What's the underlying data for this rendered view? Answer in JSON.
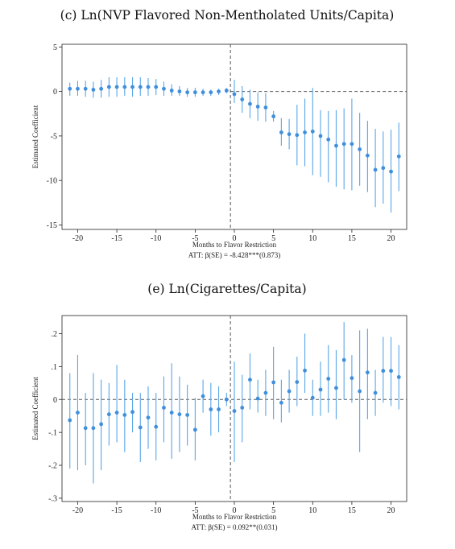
{
  "chart_data": [
    {
      "type": "scatter",
      "title": "(c) Ln(NVP Flavored Non-Mentholated Units/Capita)",
      "xlabel": "Months to Flavor Restriction",
      "ylabel": "Estimated Coefficient",
      "note": "ATT: β(SE) = -8.428***(0.873)",
      "xlim": [
        -22,
        22
      ],
      "ylim": [
        -15.5,
        5.3
      ],
      "xticks": [
        -20,
        -15,
        -10,
        -5,
        0,
        5,
        10,
        15,
        20
      ],
      "xtick_labels": [
        "-20",
        "-15",
        "-10",
        "-5",
        "0",
        "5",
        "10",
        "15",
        "20"
      ],
      "yticks": [
        5,
        0,
        -5,
        -10,
        -15
      ],
      "ytick_labels": [
        "5",
        "0",
        "-5",
        "-10",
        "-15"
      ],
      "reference_lines": {
        "vertical_x": -0.5,
        "horizontal_dashed_from_x": -0.5,
        "horizontal_y": 0
      },
      "series": [
        {
          "x": [
            -21,
            -20,
            -19,
            -18,
            -17,
            -16,
            -15,
            -14,
            -13,
            -12,
            -11,
            -10,
            -9,
            -8,
            -7,
            -6,
            -5,
            -4,
            -3,
            -2,
            -1,
            0,
            1,
            2,
            3,
            4,
            5,
            6,
            7,
            8,
            9,
            10,
            11,
            12,
            13,
            14,
            15,
            16,
            17,
            18,
            19,
            20,
            21
          ],
          "y": [
            0.3,
            0.3,
            0.3,
            0.2,
            0.3,
            0.5,
            0.5,
            0.5,
            0.5,
            0.5,
            0.5,
            0.5,
            0.3,
            0.1,
            0.0,
            -0.1,
            -0.1,
            -0.1,
            -0.1,
            0.0,
            0.1,
            -0.3,
            -0.9,
            -1.4,
            -1.7,
            -1.8,
            -2.8,
            -4.6,
            -4.8,
            -4.9,
            -4.6,
            -4.5,
            -5.0,
            -5.4,
            -6.1,
            -5.9,
            -5.9,
            -6.5,
            -7.2,
            -8.8,
            -8.6,
            -9.0,
            -7.3
          ],
          "ci_low": [
            -0.5,
            -0.5,
            -0.6,
            -0.7,
            -0.7,
            -0.6,
            -0.6,
            -0.5,
            -0.6,
            -0.5,
            -0.5,
            -0.4,
            -0.5,
            -0.5,
            -0.5,
            -0.6,
            -0.6,
            -0.5,
            -0.5,
            -0.4,
            -0.2,
            -1.3,
            -2.4,
            -3.0,
            -3.3,
            -3.4,
            -3.4,
            -6.1,
            -6.5,
            -8.3,
            -8.4,
            -9.4,
            -9.6,
            -10.2,
            -10.7,
            -11.0,
            -11.1,
            -10.6,
            -11.3,
            -13.0,
            -12.6,
            -13.6,
            -11.2
          ],
          "ci_high": [
            1.0,
            1.2,
            1.2,
            1.1,
            1.3,
            1.6,
            1.6,
            1.6,
            1.6,
            1.6,
            1.5,
            1.4,
            1.1,
            0.8,
            0.6,
            0.4,
            0.4,
            0.3,
            0.2,
            0.3,
            0.4,
            1.3,
            0.6,
            0.2,
            -0.1,
            -0.2,
            -2.2,
            -3.0,
            -3.1,
            -1.5,
            -0.8,
            0.4,
            -2.1,
            -2.2,
            -2.1,
            -1.9,
            -0.8,
            -2.4,
            -3.3,
            -4.2,
            -4.5,
            -4.3,
            -3.5
          ]
        }
      ]
    },
    {
      "type": "scatter",
      "title": "(e) Ln(Cigarettes/Capita)",
      "xlabel": "Months to Flavor Restriction",
      "ylabel": "Estimated Coefficient",
      "note": "ATT: β(SE) = 0.092**(0.031)",
      "xlim": [
        -22,
        22
      ],
      "ylim": [
        -0.31,
        0.255
      ],
      "xticks": [
        -20,
        -15,
        -10,
        -5,
        0,
        5,
        10,
        15,
        20
      ],
      "xtick_labels": [
        "-20",
        "-15",
        "-10",
        "-5",
        "0",
        "5",
        "10",
        "15",
        "20"
      ],
      "yticks": [
        0.2,
        0.1,
        0,
        -0.1,
        -0.2,
        -0.3
      ],
      "ytick_labels": [
        ".2",
        ".1",
        "0",
        "-.1",
        "-.2",
        "-.3"
      ],
      "reference_lines": {
        "vertical_x": -0.5,
        "horizontal_dashed_from_x": -22,
        "horizontal_y": 0
      },
      "series": [
        {
          "x": [
            -21,
            -20,
            -19,
            -18,
            -17,
            -16,
            -15,
            -14,
            -13,
            -12,
            -11,
            -10,
            -9,
            -8,
            -7,
            -6,
            -5,
            -4,
            -3,
            -2,
            -1,
            0,
            1,
            2,
            3,
            4,
            5,
            6,
            7,
            8,
            9,
            10,
            11,
            12,
            13,
            14,
            15,
            16,
            17,
            18,
            19,
            20,
            21
          ],
          "y": [
            -0.063,
            -0.04,
            -0.087,
            -0.087,
            -0.075,
            -0.045,
            -0.04,
            -0.047,
            -0.038,
            -0.085,
            -0.055,
            -0.083,
            -0.025,
            -0.04,
            -0.045,
            -0.047,
            -0.092,
            0.01,
            -0.03,
            -0.03,
            0.0,
            -0.035,
            -0.025,
            0.06,
            0.003,
            0.02,
            0.052,
            -0.01,
            0.025,
            0.053,
            0.088,
            0.005,
            0.03,
            0.063,
            0.035,
            0.12,
            0.065,
            0.025,
            0.082,
            0.02,
            0.087,
            0.087,
            0.068
          ],
          "ci_low": [
            -0.21,
            -0.215,
            -0.2,
            -0.255,
            -0.215,
            -0.14,
            -0.13,
            -0.16,
            -0.1,
            -0.19,
            -0.15,
            -0.185,
            -0.13,
            -0.18,
            -0.16,
            -0.14,
            -0.185,
            -0.04,
            -0.11,
            -0.1,
            -0.02,
            -0.19,
            -0.13,
            -0.03,
            -0.04,
            -0.05,
            -0.06,
            -0.07,
            -0.04,
            -0.02,
            0.02,
            -0.05,
            -0.05,
            -0.04,
            -0.06,
            0.0,
            -0.01,
            -0.16,
            -0.06,
            -0.05,
            -0.01,
            -0.02,
            -0.03
          ],
          "ci_high": [
            0.08,
            0.135,
            0.02,
            0.08,
            0.06,
            0.05,
            0.105,
            0.06,
            0.02,
            0.02,
            0.04,
            0.02,
            0.07,
            0.11,
            0.07,
            0.045,
            0.005,
            0.06,
            0.05,
            0.04,
            0.02,
            0.115,
            0.075,
            0.14,
            0.06,
            0.09,
            0.16,
            0.06,
            0.09,
            0.13,
            0.2,
            0.06,
            0.115,
            0.165,
            0.15,
            0.235,
            0.135,
            0.21,
            0.215,
            0.09,
            0.19,
            0.19,
            0.165
          ]
        }
      ]
    }
  ],
  "colors": {
    "marker": "#3f8fdd",
    "ci_line": "#5aa5e8",
    "reference": "#555555",
    "axis": "#222222"
  }
}
